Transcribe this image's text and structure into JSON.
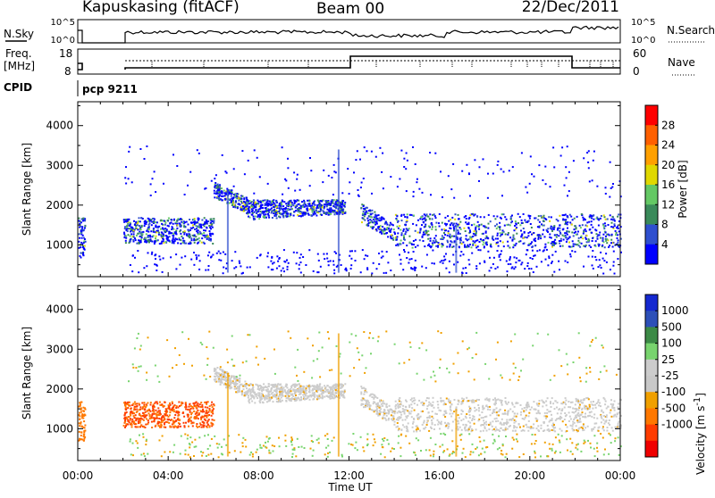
{
  "header": {
    "station": "Kapuskasing (fitACF)",
    "beam": "Beam 00",
    "date": "22/Dec/2011"
  },
  "strip_labels": {
    "nsky": "N.Sky",
    "nsearch": "N.Search",
    "freq_line1": "Freq.",
    "freq_line2": "[MHz]",
    "nave": "Nave",
    "cpid": "CPID",
    "cpid_value": "pcp 9211"
  },
  "strip_ticks": {
    "noise_left": [
      "10^5",
      "10^0"
    ],
    "noise_right": [
      "10^5",
      "10^0"
    ],
    "freq_left": [
      "18",
      "8"
    ],
    "nave_right": [
      "60",
      "0"
    ]
  },
  "colors": {
    "power_scale": [
      "#0000ff",
      "#2f4fcf",
      "#3a8a5a",
      "#64c864",
      "#e0d800",
      "#ffa000",
      "#ff6000",
      "#ff0000"
    ],
    "velocity_scale": [
      "#1428d0",
      "#2d50b8",
      "#3c8a46",
      "#78d46e",
      "#cccccc",
      "#c8c8c8",
      "#f0a000",
      "#ff7800",
      "#ff3c00",
      "#f00000"
    ]
  },
  "chart_data": [
    {
      "type": "heatmap",
      "name": "power",
      "ylabel": "Slant Range [km]",
      "yticks": [
        "1000",
        "2000",
        "3000",
        "4000"
      ],
      "ylim": [
        200,
        4600
      ],
      "xlim": [
        0,
        24
      ],
      "colorbar_label": "Power [dB]",
      "colorbar_ticks": [
        "4",
        "8",
        "12",
        "16",
        "20",
        "24",
        "28"
      ],
      "colorbar_range": [
        0,
        32
      ]
    },
    {
      "type": "heatmap",
      "name": "velocity",
      "ylabel": "Slant Range [km]",
      "yticks": [
        "1000",
        "2000",
        "3000",
        "4000"
      ],
      "ylim": [
        200,
        4600
      ],
      "xlim": [
        0,
        24
      ],
      "xlabel": "Time UT",
      "xticks": [
        "00:00",
        "04:00",
        "08:00",
        "12:00",
        "16:00",
        "20:00",
        "00:00"
      ],
      "colorbar_label": "Velocity [m s",
      "colorbar_label_sup": "-1",
      "colorbar_ticks": [
        "1000",
        "500",
        "100",
        "25",
        "-25",
        "-100",
        "-500",
        "-1000"
      ]
    }
  ]
}
